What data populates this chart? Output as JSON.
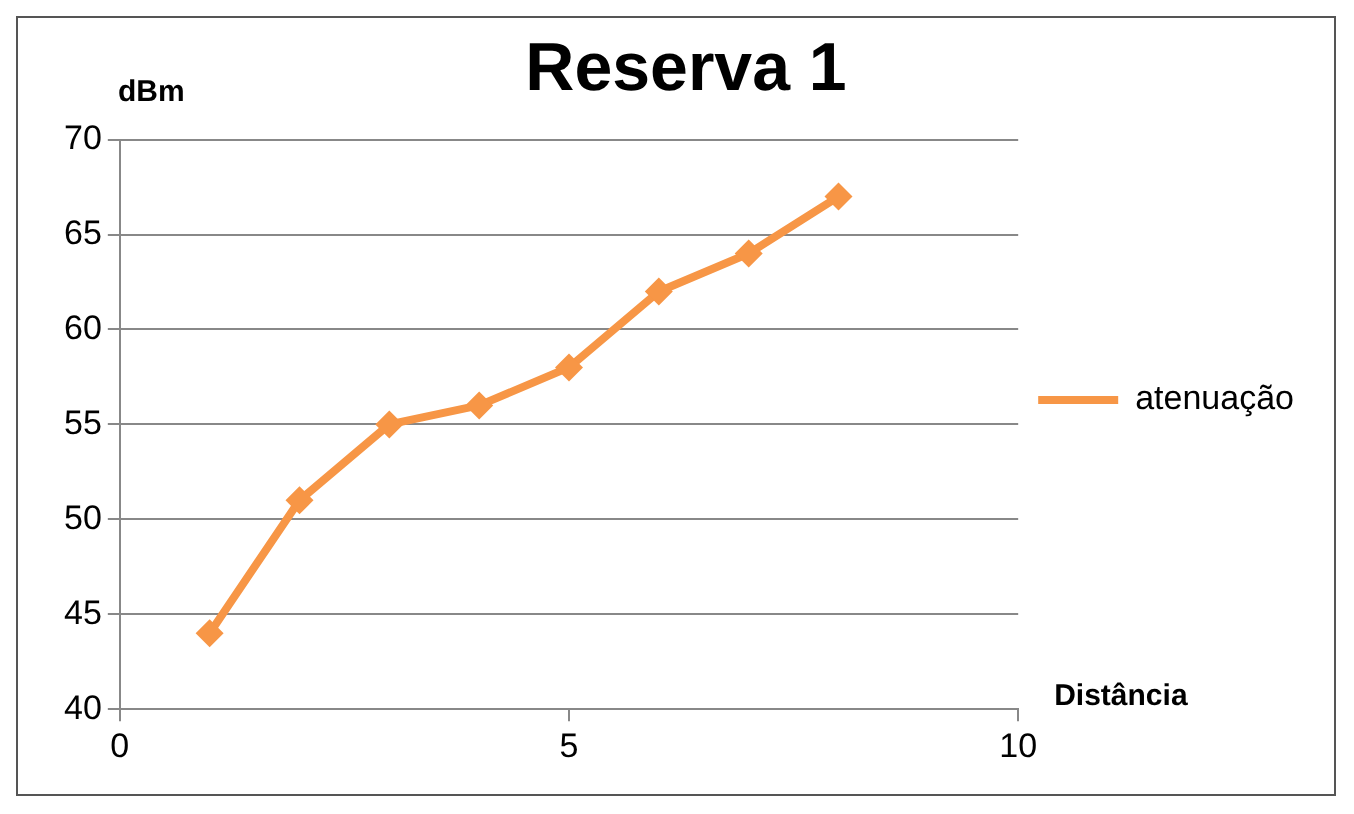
{
  "chart_data": {
    "type": "line",
    "title": "Reserva 1",
    "xlabel": "Distância",
    "ylabel": "dBm",
    "x": [
      1,
      2,
      3,
      4,
      5,
      6,
      7,
      8
    ],
    "series": [
      {
        "name": "atenuação",
        "color": "#f79646",
        "values": [
          44,
          51,
          55,
          56,
          58,
          62,
          64,
          67
        ]
      }
    ],
    "xlim": [
      0,
      10
    ],
    "xticks": [
      0,
      5,
      10
    ],
    "ylim": [
      40,
      70
    ],
    "yticks": [
      40,
      45,
      50,
      55,
      60,
      65,
      70
    ],
    "grid": "y",
    "legend": "right",
    "marker": "diamond",
    "line_style": "solid"
  }
}
